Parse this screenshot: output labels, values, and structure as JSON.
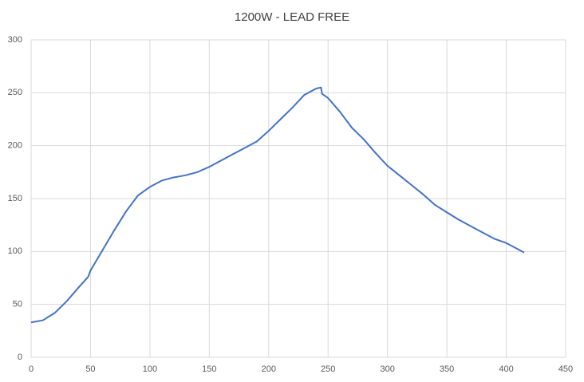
{
  "chart_data": {
    "type": "line",
    "title": "1200W - LEAD FREE",
    "x": [
      0,
      10,
      20,
      30,
      40,
      48,
      50,
      60,
      70,
      80,
      90,
      100,
      110,
      120,
      130,
      140,
      150,
      160,
      170,
      180,
      190,
      200,
      210,
      220,
      230,
      240,
      244,
      245,
      250,
      260,
      270,
      280,
      290,
      300,
      310,
      320,
      330,
      340,
      350,
      360,
      370,
      380,
      390,
      400,
      410,
      415
    ],
    "series": [
      {
        "name": "1200W - LEAD FREE",
        "color": "#4472c4",
        "values": [
          33,
          35,
          42,
          53,
          66,
          76,
          82,
          101,
          120,
          138,
          153,
          161,
          167,
          170,
          172,
          175,
          180,
          186,
          192,
          198,
          204,
          214,
          225,
          236,
          248,
          254,
          255,
          249,
          245,
          232,
          217,
          206,
          193,
          181,
          172,
          163,
          154,
          144,
          137,
          130,
          124,
          118,
          112,
          108,
          102,
          99
        ]
      }
    ],
    "xlim": [
      0,
      450
    ],
    "xticks": [
      0,
      50,
      100,
      150,
      200,
      250,
      300,
      350,
      400,
      450
    ],
    "ylim": [
      0,
      300
    ],
    "yticks": [
      0,
      50,
      100,
      150,
      200,
      250,
      300
    ],
    "grid": true
  }
}
